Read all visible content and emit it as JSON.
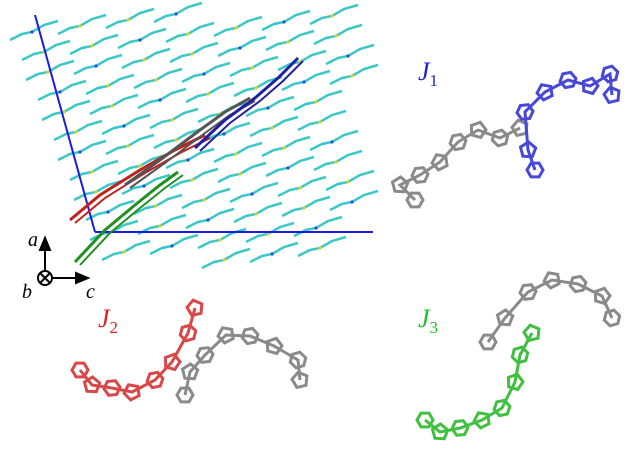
{
  "axes": {
    "a": "a",
    "b": "b",
    "c": "c"
  },
  "dimers": [
    {
      "letter": "J",
      "sub": "1"
    },
    {
      "letter": "J",
      "sub": "2"
    },
    {
      "letter": "J",
      "sub": "3"
    }
  ]
}
